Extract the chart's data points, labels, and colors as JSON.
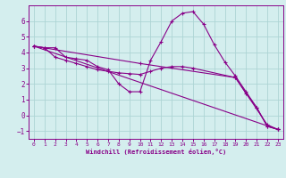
{
  "xlabel": "Windchill (Refroidissement éolien,°C)",
  "background_color": "#d4eeee",
  "grid_color": "#add4d4",
  "line_color": "#880088",
  "xlim": [
    -0.5,
    23.5
  ],
  "ylim": [
    -1.5,
    7.0
  ],
  "xticks": [
    0,
    1,
    2,
    3,
    4,
    5,
    6,
    7,
    8,
    9,
    10,
    11,
    12,
    13,
    14,
    15,
    16,
    17,
    18,
    19,
    20,
    21,
    22,
    23
  ],
  "yticks": [
    -1,
    0,
    1,
    2,
    3,
    4,
    5,
    6
  ],
  "series": [
    {
      "x": [
        0,
        1,
        2,
        3,
        4,
        5,
        6,
        7,
        8,
        9,
        10,
        11,
        12,
        13,
        14,
        15,
        16,
        17,
        18,
        19,
        20,
        21,
        22,
        23
      ],
      "y": [
        4.4,
        4.3,
        4.3,
        3.7,
        3.6,
        3.5,
        3.1,
        2.9,
        2.0,
        1.5,
        1.5,
        3.5,
        4.7,
        6.0,
        6.5,
        6.6,
        5.8,
        4.5,
        3.4,
        2.5,
        1.5,
        0.5,
        -0.7,
        -0.9
      ]
    },
    {
      "x": [
        0,
        1,
        2,
        3,
        4,
        5,
        6,
        7,
        8,
        9,
        10,
        11,
        12,
        13,
        14,
        15,
        19,
        20,
        21,
        22,
        23
      ],
      "y": [
        4.4,
        4.3,
        3.7,
        3.5,
        3.3,
        3.1,
        2.9,
        2.8,
        2.7,
        2.65,
        2.6,
        2.8,
        3.0,
        3.1,
        3.1,
        3.0,
        2.4,
        1.4,
        0.5,
        -0.7,
        -0.9
      ]
    },
    {
      "x": [
        0,
        23
      ],
      "y": [
        4.4,
        -0.9
      ]
    },
    {
      "x": [
        0,
        10,
        19,
        22,
        23
      ],
      "y": [
        4.4,
        3.3,
        2.4,
        -0.6,
        -0.9
      ]
    }
  ]
}
